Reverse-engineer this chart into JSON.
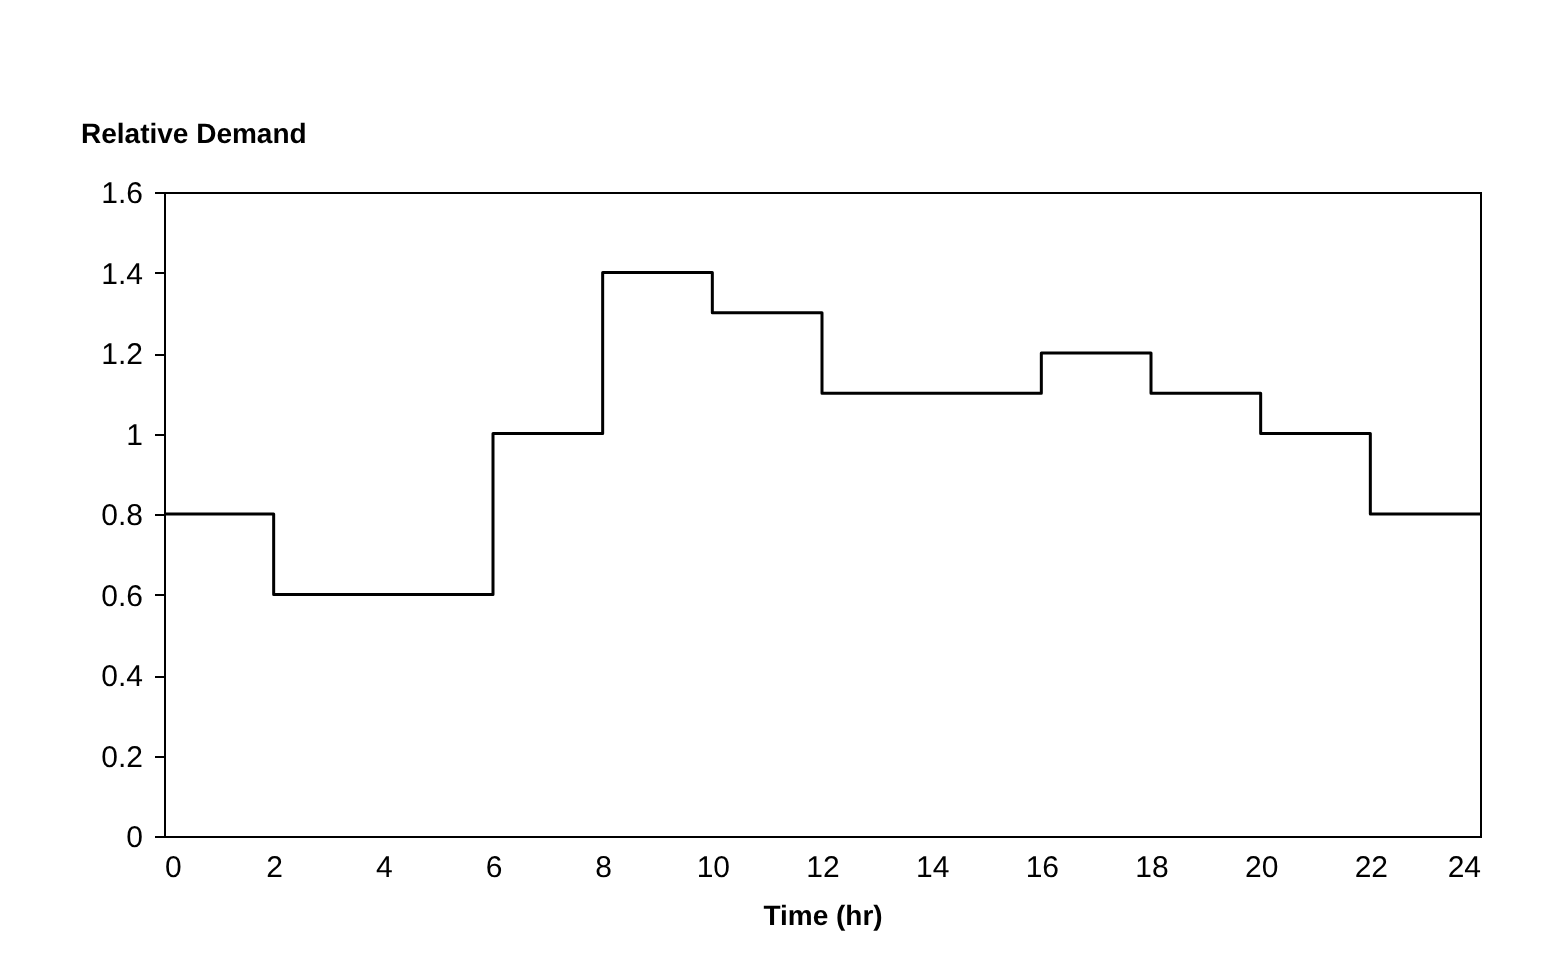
{
  "chart_data": {
    "type": "step",
    "xlabel": "Time (hr)",
    "ylabel": "Relative Demand",
    "x": [
      0,
      2,
      6,
      8,
      10,
      12,
      16,
      18,
      20,
      22,
      24
    ],
    "series": [
      {
        "color": "#000000",
        "values": [
          0.8,
          0.6,
          1.0,
          1.4,
          1.3,
          1.1,
          1.2,
          1.1,
          1.0,
          0.8,
          0.8
        ]
      }
    ],
    "xlim": [
      0,
      24
    ],
    "xticks": [
      0,
      2,
      4,
      6,
      8,
      10,
      12,
      14,
      16,
      18,
      20,
      22,
      24
    ],
    "ylim": [
      0,
      1.6
    ],
    "yticks": [
      0,
      {
        "value": 0.2,
        "label": "0.2"
      },
      {
        "value": 0.4,
        "label": "0.4"
      },
      {
        "value": 0.6,
        "label": "0.6"
      },
      {
        "value": 0.8,
        "label": "0.8"
      },
      1,
      {
        "value": 1.2,
        "label": "1.2"
      },
      {
        "value": 1.4,
        "label": "1.4"
      },
      {
        "value": 1.6,
        "label": "1.6"
      }
    ],
    "grid": false,
    "marker": "none",
    "line_style": "solid"
  }
}
